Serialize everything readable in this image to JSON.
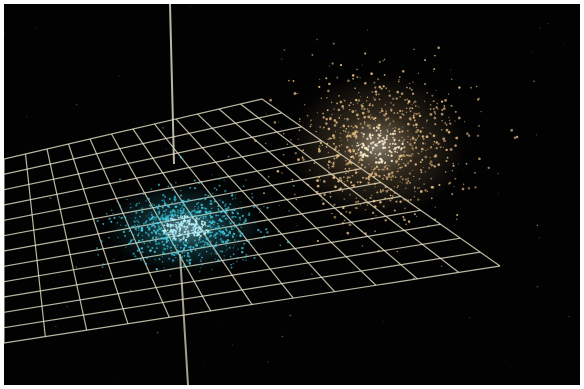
{
  "scene": {
    "background_color": "#020202",
    "frame_color": "#ffffff",
    "grid_color": "#e7e3c9",
    "axis_color": "#d9d6bf",
    "cyan_cluster_color": "#3ecfe6",
    "cyan_core_color": "#b7f6ff",
    "gold_cluster_color": "#f3c98b",
    "gold_core_color": "#fff0d1"
  }
}
